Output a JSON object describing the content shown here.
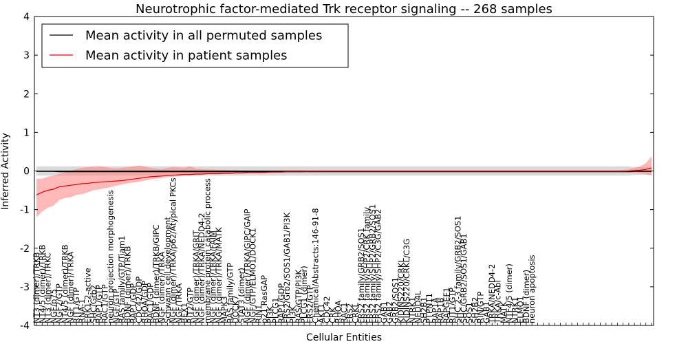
{
  "chart_data": {
    "type": "line",
    "title": "Neurotrophic factor-mediated Trk receptor signaling -- 268 samples",
    "xlabel": "Cellular Entities",
    "ylabel": "Inferred Activity",
    "ylim": [
      -4,
      4
    ],
    "yticks": [
      -4,
      -3,
      -2,
      -1,
      0,
      1,
      2,
      3,
      4
    ],
    "n_entities": 109,
    "grid": false,
    "legend_position": "top-left",
    "x_tick_labels": [
      "NT3 (dimer)/TRKB",
      "NT4/5 (dimer)/TRKB",
      "NT3 (dimer)/TRKC",
      "NGF/p75",
      "NGF2/GTP",
      "NT4/5 (dimer)/TRKB",
      "NGF (dimer)/TRKA",
      "RIT1/GTP",
      "RNA-1",
      "ERK1-2-active",
      "SHC/Grb2",
      "RAP1/GTP",
      "RAC1/GTP",
      "neuron projection morphogenesis",
      "NGF/GTP",
      "RAS family/GTP/Tiam1",
      "BDNF (dimer)/TRKB",
      "RAP1/GDP",
      "CDC42/GDP",
      "RHOA/GDP",
      "RAC1/GDP",
      "BDNF (dimer)/TRKB/GIPC",
      "NGF (dimer)/TRKA",
      "Schwann cell development",
      "NGF (dimer)/TRKA/p62/Atypical PKCs",
      "NGF/TRKA",
      "BEX1",
      "RIT2/GTP",
      "NGF (dimer)/TRKA/GRIT",
      "NGF (dimer)/TRKA/NEDD4-2",
      "membrane protein catabolic process",
      "NGF (dimer)/TRKA/FAIM",
      "NGF (dimer)/TRKA/MATK",
      "MAPK3",
      "RAS family/GTP",
      "DOCK7",
      "STAT3 (dimer)",
      "NGF (dimer)/TRKA/GIPC/GAIP",
      "NGF/GTP/ELMO1/DOCK1",
      "RIN1",
      "p21 RasGAP",
      "PI3K",
      "PLCG1",
      "RAP1/GDP",
      "FRS2/Grb2/SOS1/GAB1/PI3K",
      "PI3K",
      "RAS/GTP/PI3K",
      "PLCG1 (dimer)",
      "FRS2/GTP",
      "Chemical/Abstracts:146-91-8",
      "AKT1",
      "CDC42",
      "CRK",
      "RHOA",
      "RAC1",
      "FRS2",
      "CRKL",
      "FRS2 family/GRB2/SOS1",
      "FRS2 family/SHP2/CRK family",
      "FRS2 family/SHP2/GRB2/SOS1",
      "FRS2 family/SHP2/C3G/GAB2",
      "GAB1",
      "GAB2",
      "GRB2/SOS1",
      "KIDINS220/CRKL",
      "KIDINS220/CRKL/C3G",
      "NTRK1",
      "NEDD4L",
      "SH2B1",
      "PTPN11",
      "RAP1A",
      "RAP1B",
      "RAPGEF1",
      "RIT1/GTP",
      "SHC 2-3 family/GRB2/SOS1",
      "SHC/GRB2/SOS1/GAB1",
      "SOS1",
      "SH2B2",
      "RIN/GTP",
      "GAB1",
      "TRKA/NEDD4-2",
      "TRKA/c-Abl",
      "MATK",
      "NTF4/5 (dimer)",
      "NTRK1",
      "ELMO1",
      "BDNF (dimer)",
      "neuron apoptosis",
      "",
      "",
      "",
      "",
      "",
      "",
      "",
      "",
      "",
      "",
      "",
      "",
      "",
      "",
      "",
      "",
      "",
      "",
      "",
      "",
      ""
    ],
    "series": [
      {
        "name": "Mean activity in all permuted samples",
        "color": "#000000",
        "values": [
          -0.01,
          -0.01,
          -0.01,
          -0.01,
          -0.02,
          -0.02,
          -0.02,
          -0.02,
          -0.02,
          -0.02,
          -0.02,
          -0.02,
          -0.02,
          -0.02,
          -0.02,
          -0.02,
          -0.02,
          -0.02,
          -0.02,
          -0.02,
          -0.02,
          -0.02,
          -0.02,
          -0.02,
          -0.02,
          -0.02,
          -0.02,
          -0.02,
          -0.02,
          -0.02,
          -0.02,
          -0.02,
          -0.02,
          -0.02,
          -0.02,
          -0.02,
          -0.02,
          -0.02,
          -0.02,
          -0.02,
          -0.02,
          -0.02,
          -0.02,
          -0.02,
          -0.02,
          -0.02,
          -0.02,
          -0.02,
          -0.02,
          -0.02,
          -0.02,
          -0.02,
          -0.02,
          -0.02,
          -0.02,
          -0.02,
          -0.02,
          -0.02,
          -0.02,
          -0.02,
          -0.02,
          -0.02,
          -0.02,
          -0.02,
          -0.02,
          -0.02,
          -0.02,
          -0.02,
          -0.02,
          -0.02,
          -0.02,
          -0.02,
          -0.02,
          -0.02,
          -0.02,
          -0.02,
          -0.02,
          -0.02,
          -0.02,
          -0.02,
          -0.02,
          -0.02,
          -0.02,
          -0.02,
          -0.02,
          -0.02,
          -0.02,
          -0.02,
          -0.02,
          -0.02,
          -0.02,
          -0.02,
          -0.02,
          -0.02,
          -0.02,
          -0.02,
          -0.02,
          -0.02,
          -0.02,
          -0.02,
          -0.02,
          -0.02,
          -0.02,
          -0.02,
          -0.02,
          -0.01,
          -0.01,
          -0.01,
          -0.01
        ],
        "band_lower": [
          -0.12,
          -0.12,
          -0.12,
          -0.12,
          -0.12,
          -0.12,
          -0.12,
          -0.12,
          -0.12,
          -0.12,
          -0.12,
          -0.12,
          -0.12,
          -0.12,
          -0.12,
          -0.12,
          -0.12,
          -0.12,
          -0.12,
          -0.12,
          -0.12,
          -0.12,
          -0.12,
          -0.12,
          -0.12,
          -0.12,
          -0.12,
          -0.12,
          -0.12,
          -0.12,
          -0.12,
          -0.12,
          -0.12,
          -0.12,
          -0.12,
          -0.12,
          -0.12,
          -0.12,
          -0.12,
          -0.12,
          -0.12,
          -0.12,
          -0.12,
          -0.12,
          -0.12,
          -0.12,
          -0.12,
          -0.12,
          -0.12,
          -0.12,
          -0.12,
          -0.12,
          -0.12,
          -0.12,
          -0.12,
          -0.12,
          -0.12,
          -0.12,
          -0.12,
          -0.12,
          -0.12,
          -0.12,
          -0.12,
          -0.12,
          -0.12,
          -0.12,
          -0.12,
          -0.12,
          -0.12,
          -0.12,
          -0.12,
          -0.12,
          -0.12,
          -0.12,
          -0.12,
          -0.12,
          -0.12,
          -0.12,
          -0.12,
          -0.12,
          -0.12,
          -0.12,
          -0.12,
          -0.12,
          -0.12,
          -0.12,
          -0.12,
          -0.12,
          -0.12,
          -0.12,
          -0.12,
          -0.12,
          -0.12,
          -0.12,
          -0.12,
          -0.12,
          -0.12,
          -0.12,
          -0.12,
          -0.12,
          -0.12,
          -0.12,
          -0.12,
          -0.12,
          -0.12,
          -0.1,
          -0.1,
          -0.1,
          -0.1
        ],
        "band_upper": [
          0.12,
          0.12,
          0.12,
          0.12,
          0.12,
          0.12,
          0.12,
          0.12,
          0.12,
          0.12,
          0.12,
          0.12,
          0.12,
          0.12,
          0.12,
          0.12,
          0.12,
          0.12,
          0.12,
          0.12,
          0.12,
          0.12,
          0.12,
          0.12,
          0.12,
          0.12,
          0.12,
          0.12,
          0.12,
          0.12,
          0.12,
          0.12,
          0.12,
          0.12,
          0.12,
          0.12,
          0.12,
          0.12,
          0.12,
          0.12,
          0.12,
          0.12,
          0.12,
          0.12,
          0.12,
          0.12,
          0.12,
          0.12,
          0.12,
          0.12,
          0.12,
          0.12,
          0.12,
          0.12,
          0.12,
          0.12,
          0.12,
          0.12,
          0.12,
          0.12,
          0.12,
          0.12,
          0.12,
          0.12,
          0.12,
          0.12,
          0.12,
          0.12,
          0.12,
          0.12,
          0.12,
          0.12,
          0.12,
          0.12,
          0.12,
          0.12,
          0.12,
          0.12,
          0.12,
          0.12,
          0.12,
          0.12,
          0.12,
          0.12,
          0.12,
          0.12,
          0.12,
          0.12,
          0.12,
          0.12,
          0.12,
          0.12,
          0.12,
          0.12,
          0.12,
          0.12,
          0.12,
          0.12,
          0.12,
          0.12,
          0.12,
          0.12,
          0.12,
          0.12,
          0.12,
          0.1,
          0.1,
          0.1,
          0.1
        ],
        "band_color": "#bbbbbb"
      },
      {
        "name": "Mean activity in patient samples",
        "color": "#dd0000",
        "values": [
          -0.62,
          -0.55,
          -0.5,
          -0.47,
          -0.41,
          -0.39,
          -0.37,
          -0.35,
          -0.33,
          -0.32,
          -0.3,
          -0.29,
          -0.28,
          -0.27,
          -0.26,
          -0.25,
          -0.23,
          -0.21,
          -0.19,
          -0.17,
          -0.15,
          -0.14,
          -0.13,
          -0.12,
          -0.11,
          -0.1,
          -0.09,
          -0.09,
          -0.08,
          -0.08,
          -0.07,
          -0.07,
          -0.07,
          -0.06,
          -0.06,
          -0.05,
          -0.05,
          -0.04,
          -0.04,
          -0.04,
          -0.04,
          -0.03,
          -0.03,
          -0.03,
          -0.02,
          -0.02,
          -0.02,
          -0.02,
          -0.01,
          -0.01,
          -0.01,
          -0.01,
          -0.01,
          -0.01,
          -0.01,
          -0.01,
          -0.01,
          -0.01,
          -0.01,
          -0.01,
          -0.01,
          -0.01,
          -0.01,
          -0.01,
          -0.01,
          -0.01,
          -0.01,
          -0.01,
          -0.01,
          -0.01,
          -0.01,
          -0.01,
          -0.01,
          -0.01,
          -0.01,
          -0.01,
          -0.01,
          -0.01,
          -0.01,
          -0.01,
          -0.01,
          -0.01,
          -0.01,
          -0.01,
          -0.01,
          -0.01,
          -0.01,
          -0.01,
          -0.01,
          -0.01,
          -0.01,
          -0.01,
          -0.01,
          -0.01,
          -0.01,
          -0.01,
          -0.01,
          -0.01,
          -0.01,
          -0.01,
          -0.01,
          -0.01,
          -0.01,
          -0.01,
          0.0,
          0.01,
          0.02,
          0.04,
          0.08
        ],
        "band_lower": [
          -1.2,
          -1.05,
          -0.95,
          -0.9,
          -0.75,
          -0.7,
          -0.68,
          -0.62,
          -0.6,
          -0.55,
          -0.5,
          -0.48,
          -0.45,
          -0.42,
          -0.38,
          -0.35,
          -0.32,
          -0.3,
          -0.28,
          -0.25,
          -0.22,
          -0.2,
          -0.18,
          -0.16,
          -0.15,
          -0.14,
          -0.12,
          -0.12,
          -0.11,
          -0.1,
          -0.09,
          -0.09,
          -0.09,
          -0.08,
          -0.08,
          -0.07,
          -0.07,
          -0.06,
          -0.06,
          -0.06,
          -0.05,
          -0.05,
          -0.04,
          -0.04,
          -0.03,
          -0.03,
          -0.03,
          -0.03,
          -0.02,
          -0.02,
          -0.02,
          -0.02,
          -0.02,
          -0.02,
          -0.02,
          -0.02,
          -0.02,
          -0.02,
          -0.02,
          -0.02,
          -0.02,
          -0.02,
          -0.02,
          -0.02,
          -0.02,
          -0.02,
          -0.02,
          -0.02,
          -0.02,
          -0.02,
          -0.02,
          -0.02,
          -0.02,
          -0.02,
          -0.02,
          -0.02,
          -0.02,
          -0.02,
          -0.02,
          -0.02,
          -0.02,
          -0.02,
          -0.02,
          -0.02,
          -0.02,
          -0.02,
          -0.02,
          -0.02,
          -0.02,
          -0.02,
          -0.02,
          -0.02,
          -0.02,
          -0.02,
          -0.02,
          -0.02,
          -0.02,
          -0.02,
          -0.02,
          -0.02,
          -0.02,
          -0.02,
          -0.02,
          -0.03,
          -0.04,
          -0.05,
          -0.06,
          -0.08,
          -0.12
        ],
        "band_upper": [
          -0.2,
          -0.2,
          -0.15,
          -0.12,
          -0.08,
          -0.04,
          0.0,
          0.05,
          0.08,
          0.1,
          0.11,
          0.12,
          0.1,
          0.08,
          0.06,
          0.08,
          0.1,
          0.12,
          0.14,
          0.12,
          0.08,
          0.06,
          0.05,
          0.08,
          0.1,
          0.09,
          0.08,
          0.12,
          0.06,
          0.05,
          0.04,
          0.04,
          0.03,
          0.03,
          0.02,
          0.02,
          0.01,
          0.01,
          0.0,
          0.0,
          0.0,
          0.0,
          0.0,
          0.0,
          0.0,
          0.0,
          0.0,
          0.0,
          0.0,
          0.0,
          0.0,
          0.0,
          0.0,
          0.0,
          0.0,
          0.0,
          0.0,
          0.0,
          0.0,
          0.0,
          0.0,
          0.0,
          0.0,
          0.0,
          0.0,
          0.0,
          0.0,
          0.0,
          0.0,
          0.0,
          0.0,
          0.0,
          0.0,
          0.0,
          0.0,
          0.0,
          0.0,
          0.0,
          0.0,
          0.0,
          0.0,
          0.0,
          0.0,
          0.0,
          0.0,
          0.0,
          0.0,
          0.0,
          0.0,
          0.0,
          0.0,
          0.0,
          0.0,
          0.0,
          0.0,
          0.0,
          0.0,
          0.0,
          0.0,
          0.0,
          0.0,
          0.0,
          0.0,
          0.02,
          0.05,
          0.08,
          0.12,
          0.2,
          0.38
        ],
        "band_color": "#ff8888"
      }
    ]
  }
}
